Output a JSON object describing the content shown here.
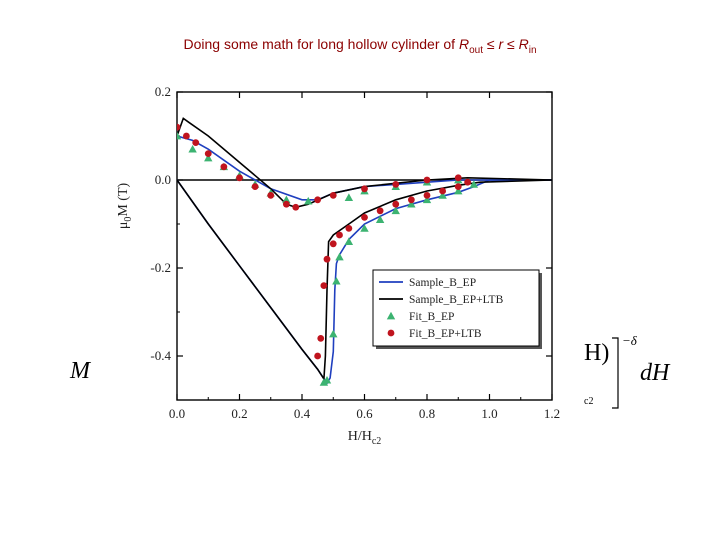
{
  "slide": {
    "title_prefix": "Doing some math for long hollow cylinder of ",
    "title_var1": "R",
    "title_sub1": "out",
    "title_rel1": " ≤ ",
    "title_var2": "r",
    "title_rel2": " ≤ ",
    "title_var3": "R",
    "title_sub2": "in"
  },
  "equation_fragments": {
    "left_symbol": "M",
    "paren_fragment": "H)",
    "exponent": "−δ",
    "differential": "dH",
    "small_fragment": "c2"
  },
  "chart_data": {
    "type": "line",
    "xlabel": "H/H",
    "xlabel_sub": "c2",
    "ylabel": "μ",
    "ylabel_sub": "0",
    "ylabel_rest": "M (T)",
    "xlim": [
      0.0,
      1.2
    ],
    "ylim": [
      -0.5,
      0.2
    ],
    "x_ticks": [
      "0.0",
      "0.2",
      "0.4",
      "0.6",
      "0.8",
      "1.0",
      "1.2"
    ],
    "y_ticks": [
      "0.2",
      "0.0",
      "-0.2",
      "-0.4"
    ],
    "legend_position": "bottom-right",
    "colors": {
      "sample_ep": "#1f3fbf",
      "sample_ep_ltb": "#000000",
      "fit_ep": "#3cb371",
      "fit_ep_ltb": "#c0141e"
    },
    "series": [
      {
        "name": "Sample_B_EP",
        "style": "line",
        "color": "#1f3fbf",
        "segments": [
          [
            [
              0.0,
              0.0
            ],
            [
              0.1,
              -0.1
            ],
            [
              0.2,
              -0.195
            ],
            [
              0.3,
              -0.29
            ],
            [
              0.4,
              -0.385
            ],
            [
              0.45,
              -0.43
            ],
            [
              0.48,
              -0.462
            ],
            [
              0.49,
              -0.45
            ],
            [
              0.5,
              -0.39
            ],
            [
              0.505,
              -0.25
            ],
            [
              0.51,
              -0.19
            ],
            [
              0.52,
              -0.17
            ],
            [
              0.55,
              -0.135
            ],
            [
              0.6,
              -0.1
            ],
            [
              0.7,
              -0.065
            ],
            [
              0.8,
              -0.045
            ],
            [
              0.9,
              -0.028
            ],
            [
              0.95,
              -0.015
            ],
            [
              1.0,
              0.0
            ],
            [
              1.2,
              0.0
            ]
          ],
          [
            [
              0.0,
              0.1
            ],
            [
              0.05,
              0.09
            ],
            [
              0.1,
              0.07
            ],
            [
              0.2,
              0.02
            ],
            [
              0.3,
              -0.02
            ],
            [
              0.4,
              -0.045
            ],
            [
              0.45,
              -0.045
            ],
            [
              0.5,
              -0.03
            ],
            [
              0.6,
              -0.015
            ],
            [
              0.7,
              -0.01
            ],
            [
              0.8,
              -0.005
            ],
            [
              0.9,
              0.0
            ],
            [
              1.0,
              0.0
            ],
            [
              1.2,
              0.0
            ]
          ]
        ]
      },
      {
        "name": "Sample_B_EP+LTB",
        "style": "line",
        "color": "#000000",
        "segments": [
          [
            [
              0.0,
              0.0
            ],
            [
              0.1,
              -0.1
            ],
            [
              0.2,
              -0.195
            ],
            [
              0.3,
              -0.29
            ],
            [
              0.4,
              -0.385
            ],
            [
              0.45,
              -0.43
            ],
            [
              0.47,
              -0.452
            ],
            [
              0.475,
              -0.4
            ],
            [
              0.48,
              -0.25
            ],
            [
              0.485,
              -0.14
            ],
            [
              0.5,
              -0.125
            ],
            [
              0.55,
              -0.1
            ],
            [
              0.6,
              -0.075
            ],
            [
              0.7,
              -0.045
            ],
            [
              0.8,
              -0.025
            ],
            [
              0.9,
              -0.012
            ],
            [
              0.97,
              -0.005
            ],
            [
              1.2,
              0.0
            ]
          ],
          [
            [
              0.0,
              0.1
            ],
            [
              0.02,
              0.14
            ],
            [
              0.04,
              0.13
            ],
            [
              0.1,
              0.1
            ],
            [
              0.2,
              0.04
            ],
            [
              0.3,
              -0.02
            ],
            [
              0.35,
              -0.055
            ],
            [
              0.38,
              -0.062
            ],
            [
              0.42,
              -0.055
            ],
            [
              0.5,
              -0.03
            ],
            [
              0.6,
              -0.015
            ],
            [
              0.8,
              0.0
            ],
            [
              0.93,
              0.005
            ],
            [
              1.2,
              0.0
            ]
          ]
        ]
      },
      {
        "name": "Fit_B_EP",
        "style": "triangle",
        "color": "#3cb371",
        "points": [
          [
            0.0,
            0.1
          ],
          [
            0.05,
            0.07
          ],
          [
            0.1,
            0.05
          ],
          [
            0.15,
            0.03
          ],
          [
            0.2,
            0.01
          ],
          [
            0.25,
            -0.01
          ],
          [
            0.3,
            -0.03
          ],
          [
            0.35,
            -0.045
          ],
          [
            0.42,
            -0.048
          ],
          [
            0.47,
            -0.46
          ],
          [
            0.48,
            -0.455
          ],
          [
            0.5,
            -0.35
          ],
          [
            0.51,
            -0.23
          ],
          [
            0.52,
            -0.175
          ],
          [
            0.55,
            -0.14
          ],
          [
            0.6,
            -0.11
          ],
          [
            0.65,
            -0.09
          ],
          [
            0.7,
            -0.07
          ],
          [
            0.75,
            -0.055
          ],
          [
            0.8,
            -0.045
          ],
          [
            0.85,
            -0.035
          ],
          [
            0.9,
            -0.025
          ],
          [
            0.95,
            -0.01
          ],
          [
            0.55,
            -0.04
          ],
          [
            0.6,
            -0.025
          ],
          [
            0.7,
            -0.015
          ],
          [
            0.8,
            -0.005
          ],
          [
            0.9,
            0.0
          ]
        ]
      },
      {
        "name": "Fit_B_EP+LTB",
        "style": "circle",
        "color": "#c0141e",
        "points": [
          [
            0.0,
            0.12
          ],
          [
            0.03,
            0.1
          ],
          [
            0.06,
            0.085
          ],
          [
            0.1,
            0.06
          ],
          [
            0.15,
            0.03
          ],
          [
            0.2,
            0.005
          ],
          [
            0.25,
            -0.015
          ],
          [
            0.3,
            -0.035
          ],
          [
            0.35,
            -0.055
          ],
          [
            0.38,
            -0.062
          ],
          [
            0.45,
            -0.4
          ],
          [
            0.46,
            -0.36
          ],
          [
            0.47,
            -0.24
          ],
          [
            0.48,
            -0.18
          ],
          [
            0.5,
            -0.145
          ],
          [
            0.52,
            -0.125
          ],
          [
            0.55,
            -0.11
          ],
          [
            0.6,
            -0.085
          ],
          [
            0.65,
            -0.07
          ],
          [
            0.7,
            -0.055
          ],
          [
            0.75,
            -0.045
          ],
          [
            0.8,
            -0.035
          ],
          [
            0.85,
            -0.025
          ],
          [
            0.9,
            -0.015
          ],
          [
            0.93,
            -0.005
          ],
          [
            0.45,
            -0.045
          ],
          [
            0.5,
            -0.035
          ],
          [
            0.6,
            -0.02
          ],
          [
            0.7,
            -0.01
          ],
          [
            0.8,
            0.0
          ],
          [
            0.9,
            0.005
          ]
        ]
      }
    ]
  }
}
